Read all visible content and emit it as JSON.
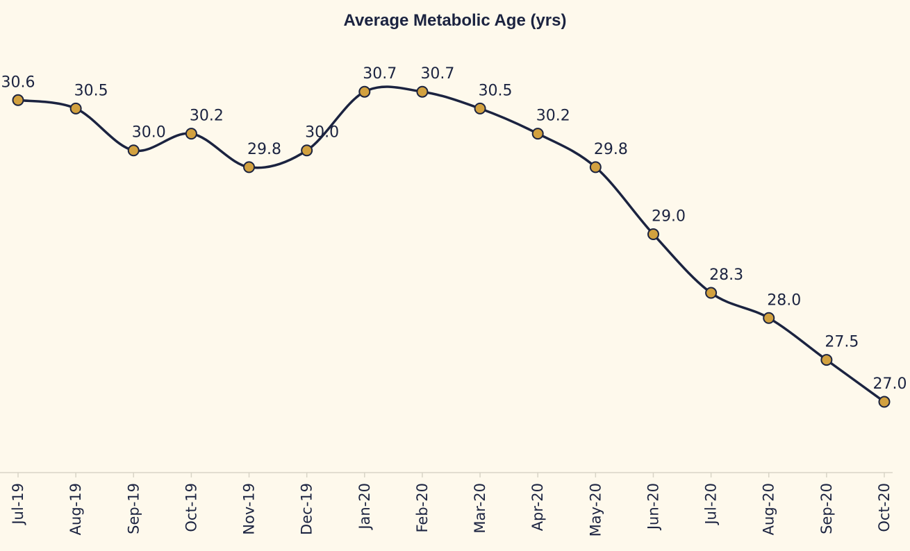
{
  "chart_data": {
    "type": "line",
    "title": "Average Metabolic Age (yrs)",
    "xlabel": "",
    "ylabel": "",
    "categories": [
      "Jul-19",
      "Aug-19",
      "Sep-19",
      "Oct-19",
      "Nov-19",
      "Dec-19",
      "Jan-20",
      "Feb-20",
      "Mar-20",
      "Apr-20",
      "May-20",
      "Jun-20",
      "Jul-20",
      "Aug-20",
      "Sep-20",
      "Oct-20"
    ],
    "series": [
      {
        "values": [
          30.6,
          30.5,
          30.0,
          30.2,
          29.8,
          30.0,
          30.7,
          30.7,
          30.5,
          30.2,
          29.8,
          29.0,
          28.3,
          28.0,
          27.5,
          27.0
        ],
        "labels": [
          "30.6",
          "30.5",
          "30.0",
          "30.2",
          "29.8",
          "30.0",
          "30.7",
          "30.7",
          "30.5",
          "30.2",
          "29.8",
          "29.0",
          "28.3",
          "28.0",
          "27.5",
          "27.0"
        ]
      }
    ],
    "ylim": [
      26.0,
      31.5
    ],
    "grid": false,
    "legend": "none",
    "colors": {
      "background": "#FEF9EC",
      "line": "#1B2340",
      "marker_fill": "#D2A13F",
      "marker_stroke": "#1B2340",
      "axis": "#D8D4C6",
      "text": "#1B2340"
    }
  }
}
